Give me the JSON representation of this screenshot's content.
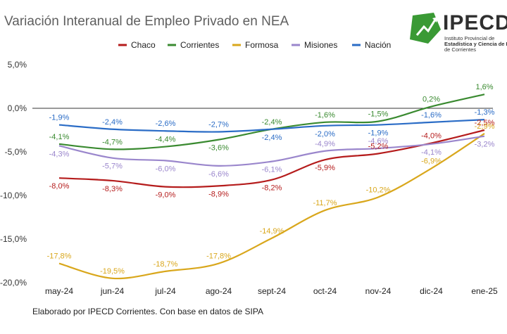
{
  "page_title": "Variación Interanual de Empleo Privado en NEA",
  "logo": {
    "name": "IPECD",
    "subtitle_lines": [
      "Instituto Provincial de",
      "Estadística y Ciencia de Datos",
      "de Corrientes"
    ],
    "color": "#3a9a35"
  },
  "footer": "Elaborado por IPECD Corrientes. Con base en datos de SIPA",
  "chart_data": {
    "type": "line",
    "title": "Variación Interanual de Empleo Privado en NEA",
    "xlabel": "",
    "ylabel": "",
    "categories": [
      "may-24",
      "jun-24",
      "jul-24",
      "ago-24",
      "sept-24",
      "oct-24",
      "nov-24",
      "dic-24",
      "ene-25"
    ],
    "ylim": [
      -20,
      5
    ],
    "yticks": [
      5,
      0,
      -5,
      -10,
      -15,
      -20
    ],
    "ytick_labels": [
      "5,0%",
      "0,0%",
      "-5,0%",
      "-10,0%",
      "-15,0%",
      "-20,0%"
    ],
    "grid": false,
    "zero_line": true,
    "legend_position": "top",
    "series": [
      {
        "name": "Chaco",
        "color": "#b51c1c",
        "values": [
          -8.0,
          -8.3,
          -9.0,
          -8.9,
          -8.2,
          -5.9,
          -5.2,
          -4.0,
          -2.5
        ],
        "labels": [
          "-8,0%",
          "-8,3%",
          "-9,0%",
          "-8,9%",
          "-8,2%",
          "-5,9%",
          "-5,2%",
          "-4,0%",
          "-2,5%"
        ],
        "label_pos": [
          "below",
          "below",
          "below",
          "below",
          "below",
          "below",
          "above",
          "above",
          "above"
        ]
      },
      {
        "name": "Corrientes",
        "color": "#3a8a30",
        "values": [
          -4.1,
          -4.7,
          -4.4,
          -3.6,
          -2.4,
          -1.6,
          -1.5,
          0.2,
          1.6
        ],
        "labels": [
          "-4,1%",
          "-4,7%",
          "-4,4%",
          "-3,6%",
          "-2,4%",
          "-1,6%",
          "-1,5%",
          "0,2%",
          "1,6%"
        ],
        "label_pos": [
          "above",
          "above",
          "above",
          "below",
          "above",
          "above",
          "above",
          "above",
          "above"
        ]
      },
      {
        "name": "Formosa",
        "color": "#d9a71c",
        "values": [
          -17.8,
          -19.5,
          -18.7,
          -17.8,
          -14.9,
          -11.7,
          -10.2,
          -6.9,
          -2.9
        ],
        "labels": [
          "-17,8%",
          "-19,5%",
          "-18,7%",
          "-17,8%",
          "-14,9%",
          "-11,7%",
          "-10,2%",
          "-6,9%",
          "-2,9%"
        ],
        "label_pos": [
          "above",
          "above",
          "above",
          "above",
          "above",
          "above",
          "above",
          "above",
          "above"
        ]
      },
      {
        "name": "Misiones",
        "color": "#9a86cc",
        "values": [
          -4.3,
          -5.7,
          -6.0,
          -6.6,
          -6.1,
          -4.9,
          -4.6,
          -4.1,
          -3.2
        ],
        "labels": [
          "-4,3%",
          "-5,7%",
          "-6,0%",
          "-6,6%",
          "-6,1%",
          "-4,9%",
          "-4,6%",
          "-4,1%",
          "-3,2%"
        ],
        "label_pos": [
          "below",
          "below",
          "below",
          "below",
          "below",
          "above",
          "above",
          "below",
          "below"
        ]
      },
      {
        "name": "Nación",
        "color": "#2a6cc6",
        "values": [
          -1.9,
          -2.4,
          -2.6,
          -2.7,
          -2.4,
          -2.0,
          -1.9,
          -1.6,
          -1.3
        ],
        "labels": [
          "-1,9%",
          "-2,4%",
          "-2,6%",
          "-2,7%",
          "-2,4%",
          "-2,0%",
          "-1,9%",
          "-1,6%",
          "-1,3%"
        ],
        "label_pos": [
          "above",
          "above",
          "above",
          "above",
          "below",
          "below",
          "below",
          "above",
          "above"
        ]
      }
    ]
  }
}
